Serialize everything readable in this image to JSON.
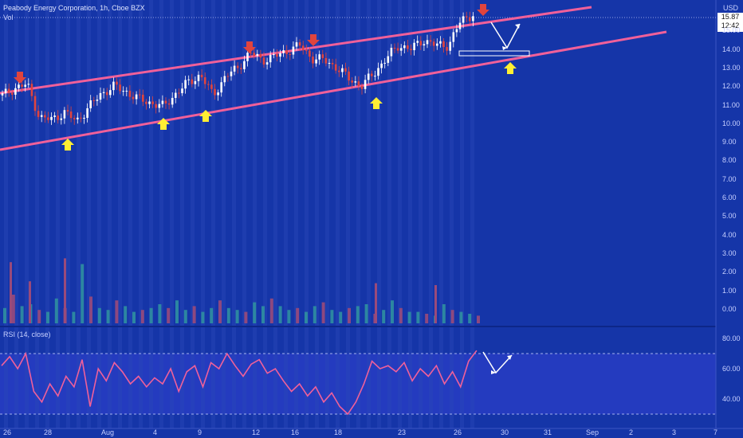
{
  "header": {
    "title": "Peabody Energy Corporation, 1h, Cboe BZX",
    "volume_label": "Vol",
    "currency": "USD",
    "last_price": "15.87",
    "countdown": "12:42"
  },
  "rsi_panel": {
    "title": "RSI (14, close)",
    "axis_ticks": [
      "80.00",
      "60.00",
      "40.00"
    ],
    "upper_band": 70,
    "lower_band": 30
  },
  "colors": {
    "background": "#1535a8",
    "up_candle": "#ffffff",
    "down_candle": "#e0443e",
    "trendline": "#f0609a",
    "rsi_line": "#f0609a",
    "rsi_band_fill": "#2b3fc9",
    "resistance_arrow": "#e0443e",
    "support_arrow": "#ffee33",
    "projection_arrow": "#ffffff"
  },
  "chart_data": [
    {
      "type": "candlestick",
      "title": "Peabody Energy Corporation, 1h, Cboe BZX",
      "x_tick_labels": [
        "26",
        "28",
        "Aug",
        "4",
        "9",
        "12",
        "16",
        "18",
        "23",
        "26",
        "30",
        "31",
        "Sep",
        "2",
        "3",
        "7"
      ],
      "y_tick_labels": [
        "15.00",
        "14.00",
        "13.00",
        "12.00",
        "11.00",
        "10.00",
        "9.00",
        "8.00",
        "7.00",
        "6.00",
        "5.00",
        "4.00",
        "3.00",
        "2.00",
        "1.00",
        "0.00"
      ],
      "last_price": 15.87,
      "close_path": [
        11.5,
        11.9,
        12.1,
        10.3,
        10.2,
        10.6,
        10.1,
        10.9,
        11.6,
        12.0,
        11.7,
        11.3,
        11.1,
        10.9,
        11.6,
        12.2,
        12.6,
        11.5,
        12.5,
        13.0,
        13.8,
        13.4,
        13.6,
        13.9,
        14.2,
        13.5,
        13.4,
        13.0,
        12.4,
        12.0,
        12.7,
        13.5,
        14.2,
        14.0,
        14.5,
        14.2,
        14.2,
        15.5,
        15.9
      ],
      "trendlines": [
        {
          "role": "resistance",
          "points": [
            [
              "Jul 26",
              11.7
            ],
            [
              "Sep 3",
              16.4
            ]
          ]
        },
        {
          "role": "support",
          "points": [
            [
              "Jul 26",
              8.9
            ],
            [
              "Sep 3",
              15.0
            ]
          ]
        }
      ],
      "resistance_touches": 4,
      "support_touches": 5
    },
    {
      "type": "bar",
      "title": "Vol",
      "values_millions": [
        0.8,
        1.5,
        0.9,
        1.0,
        0.7,
        0.6,
        1.3,
        0.8,
        0.6,
        3.1,
        1.4,
        0.8,
        0.7,
        1.2,
        0.9,
        0.6,
        0.7,
        0.8,
        1.0,
        0.8,
        1.2,
        0.7,
        0.9,
        0.6,
        0.8,
        1.2,
        0.8,
        0.7,
        0.6,
        1.1,
        0.9,
        1.3,
        0.9,
        0.7,
        0.8,
        0.6,
        0.9,
        1.1,
        0.7,
        0.6,
        0.8,
        0.9,
        1.0,
        0.5,
        0.7,
        1.2,
        0.8,
        0.6,
        0.6,
        0.5,
        0.4,
        1.0,
        0.7,
        0.6,
        0.5,
        0.4
      ]
    },
    {
      "type": "line",
      "title": "RSI (14, close)",
      "ylim": [
        25,
        85
      ],
      "values": [
        62,
        68,
        60,
        70,
        45,
        38,
        50,
        42,
        55,
        48,
        66,
        35,
        60,
        52,
        64,
        58,
        50,
        55,
        48,
        54,
        50,
        60,
        45,
        58,
        62,
        48,
        64,
        60,
        70,
        62,
        55,
        63,
        66,
        57,
        60,
        52,
        45,
        50,
        42,
        48,
        38,
        44,
        35,
        30,
        38,
        50,
        65,
        60,
        62,
        58,
        64,
        52,
        60,
        55,
        62,
        50,
        58,
        48,
        65,
        72
      ]
    }
  ]
}
